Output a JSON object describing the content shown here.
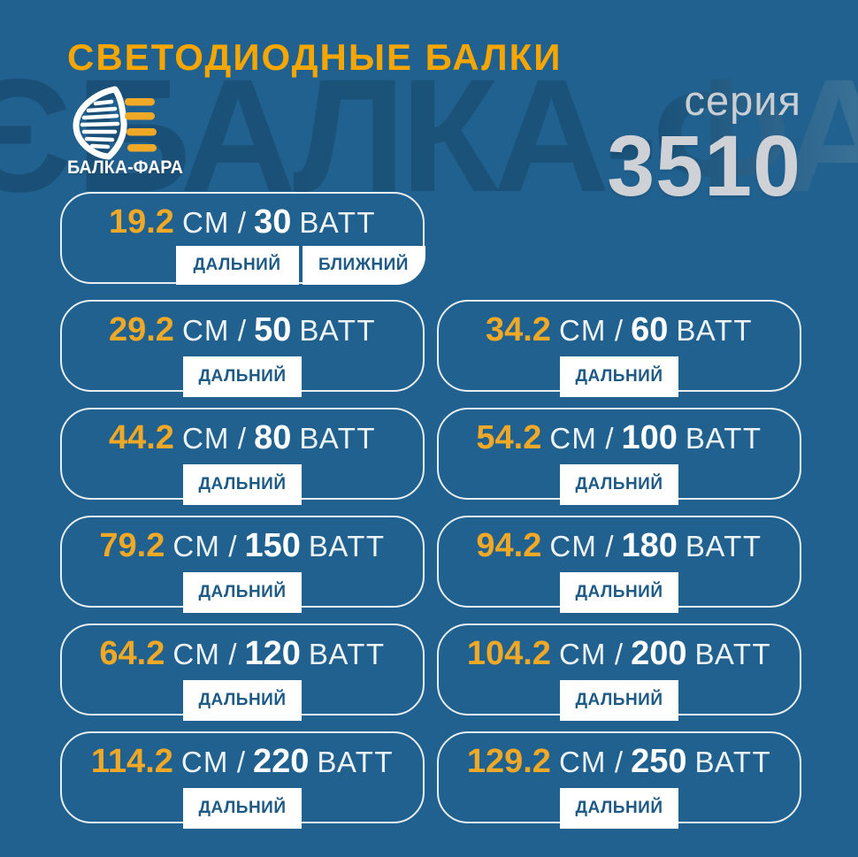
{
  "header": {
    "title": "СВЕТОДИОДНЫЕ БАЛКИ",
    "brand": "БАЛКА-ФАРА",
    "series_label": "серия",
    "series_number": "3510"
  },
  "watermark": {
    "glyph": "Є",
    "text": "БАЛКА-ФАРА"
  },
  "labels": {
    "cm": "СМ",
    "slash": "/",
    "watt": "ВАТТ"
  },
  "icons": {
    "headlight_logo": "headlight-lens-with-orange-light-bars-icon"
  },
  "colors": {
    "background": "#20618f",
    "title_orange": "#f7a600",
    "value_orange": "#f0a827",
    "tag_text_blue": "#1e5a86",
    "card_border": "#e8eef2",
    "series_gray": "#ced2d6"
  },
  "products": [
    {
      "length_cm": "19.2",
      "watts": "30",
      "beams": [
        "ДАЛЬНИЙ",
        "БЛИЖНИЙ"
      ]
    },
    {
      "length_cm": "29.2",
      "watts": "50",
      "beams": [
        "ДАЛЬНИЙ"
      ]
    },
    {
      "length_cm": "34.2",
      "watts": "60",
      "beams": [
        "ДАЛЬНИЙ"
      ]
    },
    {
      "length_cm": "44.2",
      "watts": "80",
      "beams": [
        "ДАЛЬНИЙ"
      ]
    },
    {
      "length_cm": "54.2",
      "watts": "100",
      "beams": [
        "ДАЛЬНИЙ"
      ]
    },
    {
      "length_cm": "79.2",
      "watts": "150",
      "beams": [
        "ДАЛЬНИЙ"
      ]
    },
    {
      "length_cm": "94.2",
      "watts": "180",
      "beams": [
        "ДАЛЬНИЙ"
      ]
    },
    {
      "length_cm": "64.2",
      "watts": "120",
      "beams": [
        "ДАЛЬНИЙ"
      ]
    },
    {
      "length_cm": "104.2",
      "watts": "200",
      "beams": [
        "ДАЛЬНИЙ"
      ]
    },
    {
      "length_cm": "114.2",
      "watts": "220",
      "beams": [
        "ДАЛЬНИЙ"
      ]
    },
    {
      "length_cm": "129.2",
      "watts": "250",
      "beams": [
        "ДАЛЬНИЙ"
      ]
    }
  ]
}
